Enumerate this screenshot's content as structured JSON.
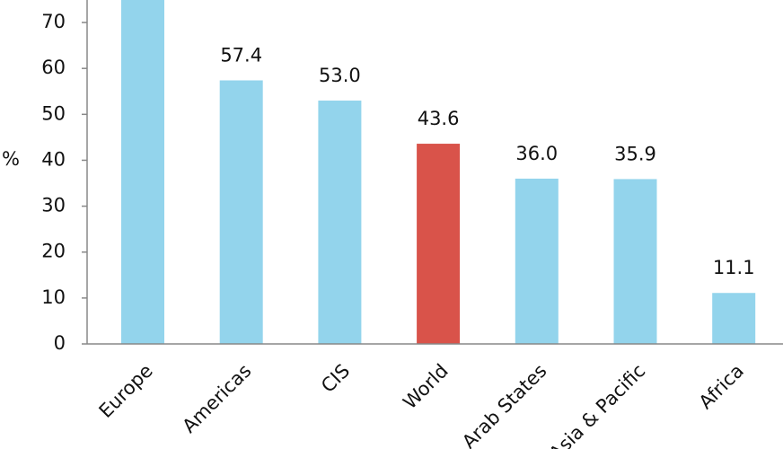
{
  "chart_data": {
    "type": "bar",
    "y_label": "%",
    "categories": [
      "Europe",
      "Americas",
      "CIS",
      "World",
      "Arab States",
      "Asia & Pacific",
      "Africa"
    ],
    "values": [
      75,
      57.4,
      53.0,
      43.6,
      36.0,
      35.9,
      11.1
    ],
    "value_labels": [
      null,
      "57.4",
      "53.0",
      "43.6",
      "36.0",
      "35.9",
      "11.1"
    ],
    "colors": [
      "#93d4ec",
      "#93d4ec",
      "#93d4ec",
      "#d9534a",
      "#93d4ec",
      "#93d4ec",
      "#93d4ec"
    ],
    "ylim": [
      0,
      74.9
    ],
    "yticks": [
      0,
      10,
      20,
      30,
      40,
      50,
      60,
      70
    ],
    "grid": false
  }
}
